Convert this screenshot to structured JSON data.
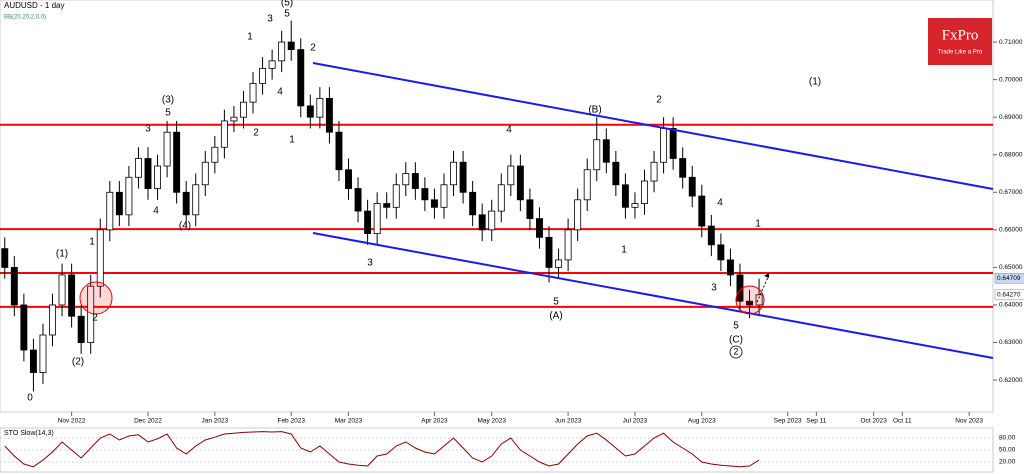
{
  "header": {
    "title": "AUDUSD - 1 day",
    "subtitle": "BB(20,20,2,0,0)"
  },
  "logo": {
    "name": "FxPro",
    "tagline": "Trade Like a Pro"
  },
  "annotations": [
    "0",
    "(1)",
    "(2)",
    "1",
    "2",
    "3",
    "4",
    "(3)",
    "5",
    "(4)",
    "1",
    "2",
    "3",
    "4",
    "(5)",
    "5",
    "1",
    "2",
    "3",
    "4",
    "5",
    "(A)",
    "(B)",
    "2",
    "1",
    "4",
    "3",
    "5",
    "(C)",
    "1",
    "(1)",
    "2"
  ],
  "chart_data": [
    {
      "type": "candlestick",
      "categories": [
        null,
        null,
        null,
        null,
        null,
        null,
        null,
        "Nov 2022",
        null,
        null,
        null,
        null,
        null,
        null,
        null,
        "Dec 2022",
        null,
        null,
        null,
        null,
        null,
        null,
        "Jan 2023",
        null,
        null,
        null,
        null,
        null,
        null,
        null,
        "Feb 2023",
        null,
        null,
        null,
        null,
        null,
        "Mar 2023",
        null,
        null,
        null,
        null,
        null,
        null,
        null,
        null,
        "Apr 2023",
        null,
        null,
        null,
        null,
        null,
        "May 2023",
        null,
        null,
        null,
        null,
        null,
        null,
        null,
        "Jun 2023",
        null,
        null,
        null,
        null,
        null,
        null,
        "Jul 2023",
        null,
        null,
        null,
        null,
        null,
        null,
        "Aug 2023",
        null,
        null,
        null,
        null,
        null,
        null,
        null,
        null,
        "Sep 2023",
        null,
        null,
        "Sep 11",
        null,
        null,
        null,
        null,
        null,
        "Oct 2023",
        null,
        null,
        "Oct 11",
        null,
        null,
        null,
        null,
        null,
        null,
        "Nov 2023",
        null,
        null
      ],
      "open": [
        0.655,
        0.65,
        0.64,
        0.628,
        0.622,
        0.632,
        0.64,
        0.648,
        0.637,
        0.63,
        0.645,
        0.66,
        0.67,
        0.664,
        0.674,
        0.679,
        0.671,
        0.677,
        0.686,
        0.67,
        0.664,
        0.672,
        0.678,
        0.682,
        0.689,
        0.69,
        0.694,
        0.699,
        0.703,
        0.705,
        0.71,
        0.708,
        0.693,
        0.69,
        0.695,
        0.686,
        0.676,
        0.671,
        0.665,
        0.659,
        0.667,
        0.666,
        0.672,
        0.675,
        0.671,
        0.668,
        0.666,
        0.672,
        0.678,
        0.67,
        0.664,
        0.66,
        0.665,
        0.672,
        0.677,
        0.668,
        0.663,
        0.658,
        0.65,
        0.652,
        0.66,
        0.668,
        0.676,
        0.684,
        0.678,
        0.672,
        0.666,
        0.667,
        0.673,
        0.678,
        0.687,
        0.679,
        0.674,
        0.669,
        0.661,
        0.656,
        0.652,
        0.648,
        0.641,
        0.64,
        null,
        null,
        null,
        null,
        null,
        null,
        null,
        null,
        null,
        null,
        null,
        null,
        null,
        null,
        null,
        null,
        null,
        null,
        null,
        null,
        null,
        null,
        null,
        null
      ],
      "high": [
        0.658,
        0.653,
        0.643,
        0.631,
        0.635,
        0.643,
        0.651,
        0.651,
        0.64,
        0.648,
        0.663,
        0.673,
        0.673,
        0.677,
        0.682,
        0.682,
        0.68,
        0.689,
        0.689,
        0.673,
        0.675,
        0.681,
        0.685,
        0.692,
        0.693,
        0.697,
        0.702,
        0.706,
        0.708,
        0.713,
        0.7157,
        0.711,
        0.696,
        0.698,
        0.698,
        0.689,
        0.679,
        0.674,
        0.668,
        0.67,
        0.67,
        0.675,
        0.678,
        0.678,
        0.674,
        0.671,
        0.675,
        0.681,
        0.681,
        0.673,
        0.667,
        0.668,
        0.675,
        0.68,
        0.68,
        0.671,
        0.666,
        0.661,
        0.655,
        0.663,
        0.671,
        0.679,
        0.69,
        0.687,
        0.681,
        0.675,
        0.67,
        0.676,
        0.681,
        0.69,
        0.69,
        0.682,
        0.677,
        0.672,
        0.664,
        0.659,
        0.655,
        0.651,
        0.644,
        0.647,
        null,
        null,
        null,
        null,
        null,
        null,
        null,
        null,
        null,
        null,
        null,
        null,
        null,
        null,
        null,
        null,
        null,
        null,
        null,
        null,
        null,
        null,
        null,
        null
      ],
      "low": [
        0.647,
        0.637,
        0.625,
        0.617,
        0.619,
        0.629,
        0.637,
        0.634,
        0.627,
        0.627,
        0.642,
        0.657,
        0.661,
        0.661,
        0.671,
        0.668,
        0.668,
        0.674,
        0.667,
        0.661,
        0.661,
        0.669,
        0.675,
        0.679,
        0.686,
        0.687,
        0.691,
        0.696,
        0.7,
        0.702,
        0.705,
        0.69,
        0.687,
        0.687,
        0.683,
        0.673,
        0.668,
        0.662,
        0.656,
        0.656,
        0.663,
        0.663,
        0.669,
        0.668,
        0.665,
        0.663,
        0.663,
        0.669,
        0.667,
        0.661,
        0.657,
        0.657,
        0.662,
        0.669,
        0.665,
        0.66,
        0.655,
        0.646,
        0.647,
        0.649,
        0.657,
        0.665,
        0.673,
        0.675,
        0.669,
        0.663,
        0.663,
        0.664,
        0.67,
        0.675,
        0.676,
        0.671,
        0.666,
        0.658,
        0.653,
        0.649,
        0.645,
        0.638,
        0.6365,
        0.637,
        null,
        null,
        null,
        null,
        null,
        null,
        null,
        null,
        null,
        null,
        null,
        null,
        null,
        null,
        null,
        null,
        null,
        null,
        null,
        null,
        null,
        null,
        null,
        null
      ],
      "close": [
        0.65,
        0.64,
        0.628,
        0.622,
        0.632,
        0.64,
        0.648,
        0.637,
        0.63,
        0.645,
        0.66,
        0.67,
        0.664,
        0.674,
        0.679,
        0.671,
        0.677,
        0.686,
        0.67,
        0.664,
        0.672,
        0.678,
        0.682,
        0.689,
        0.69,
        0.694,
        0.699,
        0.703,
        0.705,
        0.71,
        0.708,
        0.693,
        0.69,
        0.695,
        0.686,
        0.676,
        0.671,
        0.665,
        0.659,
        0.667,
        0.666,
        0.672,
        0.675,
        0.671,
        0.668,
        0.666,
        0.672,
        0.678,
        0.67,
        0.664,
        0.66,
        0.665,
        0.672,
        0.677,
        0.668,
        0.663,
        0.658,
        0.65,
        0.652,
        0.66,
        0.668,
        0.676,
        0.684,
        0.678,
        0.672,
        0.666,
        0.667,
        0.673,
        0.678,
        0.687,
        0.679,
        0.674,
        0.669,
        0.661,
        0.656,
        0.652,
        0.648,
        0.641,
        0.64,
        0.6427,
        null,
        null,
        null,
        null,
        null,
        null,
        null,
        null,
        null,
        null,
        null,
        null,
        null,
        null,
        null,
        null,
        null,
        null,
        null,
        null,
        null,
        null,
        null,
        null
      ],
      "ylim": [
        0.6115,
        0.7212
      ],
      "yticks": [
        {
          "value": 0.71,
          "label": "0.71000"
        },
        {
          "value": 0.7,
          "label": "0.70000"
        },
        {
          "value": 0.69,
          "label": "0.69000"
        },
        {
          "value": 0.68,
          "label": "0.68000"
        },
        {
          "value": 0.67,
          "label": "0.67000"
        },
        {
          "value": 0.66,
          "label": "0.66000"
        },
        {
          "value": 0.65,
          "label": "0.65000"
        },
        {
          "value": 0.64,
          "label": "0.64000"
        },
        {
          "value": 0.63,
          "label": "0.63000"
        },
        {
          "value": 0.62,
          "label": "0.62000"
        }
      ],
      "levels": [
        0.688,
        0.6602,
        0.6485,
        0.6395
      ],
      "level_color": "#ff0000",
      "price_labels": [
        {
          "value": 0.64709,
          "label": "0.64709"
        },
        {
          "value": 0.6427,
          "label": "0.64270"
        }
      ]
    },
    {
      "type": "line",
      "title": "STO Slow(14,3)",
      "color": "#8b0000",
      "values": [
        60,
        35,
        15,
        8,
        25,
        45,
        70,
        50,
        30,
        55,
        80,
        90,
        75,
        85,
        88,
        70,
        78,
        90,
        55,
        40,
        60,
        75,
        82,
        90,
        92,
        94,
        95,
        96,
        95,
        96,
        90,
        55,
        45,
        60,
        40,
        20,
        15,
        12,
        10,
        35,
        40,
        60,
        70,
        55,
        45,
        40,
        60,
        80,
        55,
        30,
        20,
        35,
        65,
        80,
        50,
        35,
        20,
        10,
        15,
        40,
        65,
        85,
        92,
        75,
        55,
        35,
        40,
        60,
        80,
        92,
        70,
        55,
        40,
        20,
        15,
        12,
        10,
        8,
        10,
        25,
        null,
        null,
        null,
        null,
        null,
        null,
        null,
        null,
        null,
        null,
        null,
        null,
        null,
        null,
        null,
        null,
        null,
        null,
        null,
        null,
        null,
        null,
        null,
        null
      ],
      "ylim": [
        0,
        100
      ],
      "yticks": [
        {
          "value": 80,
          "label": "80.00"
        },
        {
          "value": 50,
          "label": "50.00"
        },
        {
          "value": 20,
          "label": "20.00"
        }
      ]
    }
  ]
}
